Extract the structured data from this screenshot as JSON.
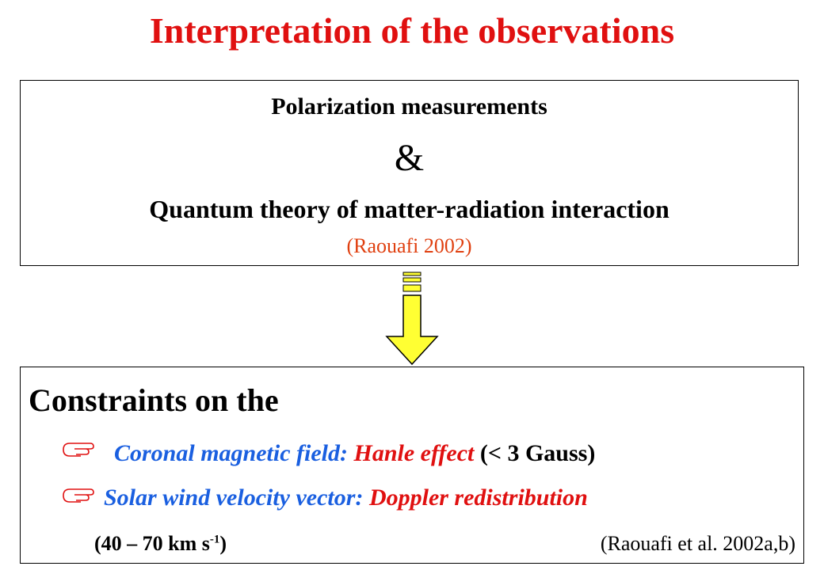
{
  "title": "Interpretation of the observations",
  "premise": {
    "line1": "Polarization measurements",
    "connector": "&",
    "line2": "Quantum theory of matter-radiation interaction",
    "reference": "(Raouafi 2002)"
  },
  "result": {
    "heading": "Constraints on the",
    "bullets": [
      {
        "topic": "Coronal magnetic field:",
        "method": "Hanle effect",
        "detail": "(< 3 Gauss)"
      },
      {
        "topic": "Solar wind velocity vector:",
        "method": "Doppler redistribution"
      }
    ],
    "range": {
      "text": "(40 – 70 km s",
      "exponent": "-1",
      "close": ")"
    },
    "reference": "(Raouafi et al. 2002a,b)"
  }
}
